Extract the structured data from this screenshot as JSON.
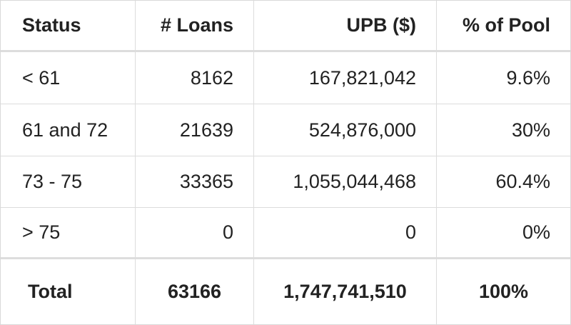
{
  "table": {
    "headers": [
      "Status",
      "# Loans",
      "UPB ($)",
      "% of Pool"
    ],
    "rows": [
      [
        "< 61",
        "8162",
        "167,821,042",
        "9.6%"
      ],
      [
        "61 and 72",
        "21639",
        "524,876,000",
        "30%"
      ],
      [
        "73 - 75",
        "33365",
        "1,055,044,468",
        "60.4%"
      ],
      [
        "> 75",
        "0",
        "0",
        "0%"
      ]
    ],
    "total": [
      "Total",
      "63166",
      "1,747,741,510",
      "100%"
    ]
  }
}
